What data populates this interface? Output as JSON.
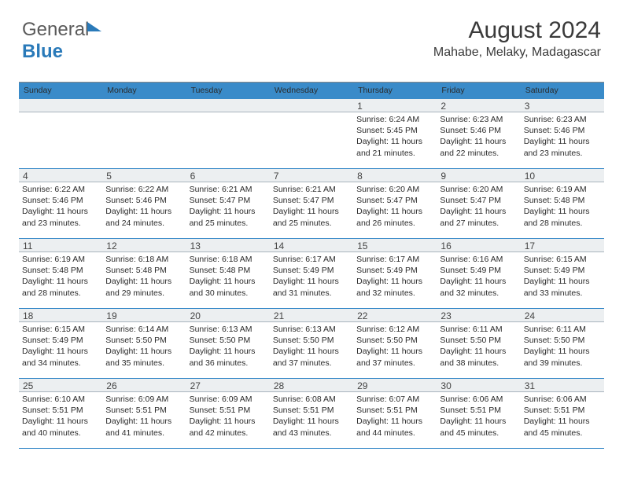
{
  "logo": {
    "part1": "General",
    "part2": "Blue"
  },
  "header": {
    "month": "August 2024",
    "location": "Mahabe, Melaky, Madagascar"
  },
  "calendar": {
    "weekdays": [
      "Sunday",
      "Monday",
      "Tuesday",
      "Wednesday",
      "Thursday",
      "Friday",
      "Saturday"
    ],
    "header_bg": "#3a8bc9",
    "header_fg": "#ffffff",
    "daynum_bg": "#eceff1",
    "row_border": "#3a8bc9",
    "text_color": "#2a2a2a",
    "weeks": [
      {
        "nums": [
          "",
          "",
          "",
          "",
          "1",
          "2",
          "3"
        ],
        "data": [
          {
            "sr": "",
            "ss": "",
            "d1": "",
            "d2": ""
          },
          {
            "sr": "",
            "ss": "",
            "d1": "",
            "d2": ""
          },
          {
            "sr": "",
            "ss": "",
            "d1": "",
            "d2": ""
          },
          {
            "sr": "",
            "ss": "",
            "d1": "",
            "d2": ""
          },
          {
            "sr": "Sunrise: 6:24 AM",
            "ss": "Sunset: 5:45 PM",
            "d1": "Daylight: 11 hours",
            "d2": "and 21 minutes."
          },
          {
            "sr": "Sunrise: 6:23 AM",
            "ss": "Sunset: 5:46 PM",
            "d1": "Daylight: 11 hours",
            "d2": "and 22 minutes."
          },
          {
            "sr": "Sunrise: 6:23 AM",
            "ss": "Sunset: 5:46 PM",
            "d1": "Daylight: 11 hours",
            "d2": "and 23 minutes."
          }
        ]
      },
      {
        "nums": [
          "4",
          "5",
          "6",
          "7",
          "8",
          "9",
          "10"
        ],
        "data": [
          {
            "sr": "Sunrise: 6:22 AM",
            "ss": "Sunset: 5:46 PM",
            "d1": "Daylight: 11 hours",
            "d2": "and 23 minutes."
          },
          {
            "sr": "Sunrise: 6:22 AM",
            "ss": "Sunset: 5:46 PM",
            "d1": "Daylight: 11 hours",
            "d2": "and 24 minutes."
          },
          {
            "sr": "Sunrise: 6:21 AM",
            "ss": "Sunset: 5:47 PM",
            "d1": "Daylight: 11 hours",
            "d2": "and 25 minutes."
          },
          {
            "sr": "Sunrise: 6:21 AM",
            "ss": "Sunset: 5:47 PM",
            "d1": "Daylight: 11 hours",
            "d2": "and 25 minutes."
          },
          {
            "sr": "Sunrise: 6:20 AM",
            "ss": "Sunset: 5:47 PM",
            "d1": "Daylight: 11 hours",
            "d2": "and 26 minutes."
          },
          {
            "sr": "Sunrise: 6:20 AM",
            "ss": "Sunset: 5:47 PM",
            "d1": "Daylight: 11 hours",
            "d2": "and 27 minutes."
          },
          {
            "sr": "Sunrise: 6:19 AM",
            "ss": "Sunset: 5:48 PM",
            "d1": "Daylight: 11 hours",
            "d2": "and 28 minutes."
          }
        ]
      },
      {
        "nums": [
          "11",
          "12",
          "13",
          "14",
          "15",
          "16",
          "17"
        ],
        "data": [
          {
            "sr": "Sunrise: 6:19 AM",
            "ss": "Sunset: 5:48 PM",
            "d1": "Daylight: 11 hours",
            "d2": "and 28 minutes."
          },
          {
            "sr": "Sunrise: 6:18 AM",
            "ss": "Sunset: 5:48 PM",
            "d1": "Daylight: 11 hours",
            "d2": "and 29 minutes."
          },
          {
            "sr": "Sunrise: 6:18 AM",
            "ss": "Sunset: 5:48 PM",
            "d1": "Daylight: 11 hours",
            "d2": "and 30 minutes."
          },
          {
            "sr": "Sunrise: 6:17 AM",
            "ss": "Sunset: 5:49 PM",
            "d1": "Daylight: 11 hours",
            "d2": "and 31 minutes."
          },
          {
            "sr": "Sunrise: 6:17 AM",
            "ss": "Sunset: 5:49 PM",
            "d1": "Daylight: 11 hours",
            "d2": "and 32 minutes."
          },
          {
            "sr": "Sunrise: 6:16 AM",
            "ss": "Sunset: 5:49 PM",
            "d1": "Daylight: 11 hours",
            "d2": "and 32 minutes."
          },
          {
            "sr": "Sunrise: 6:15 AM",
            "ss": "Sunset: 5:49 PM",
            "d1": "Daylight: 11 hours",
            "d2": "and 33 minutes."
          }
        ]
      },
      {
        "nums": [
          "18",
          "19",
          "20",
          "21",
          "22",
          "23",
          "24"
        ],
        "data": [
          {
            "sr": "Sunrise: 6:15 AM",
            "ss": "Sunset: 5:49 PM",
            "d1": "Daylight: 11 hours",
            "d2": "and 34 minutes."
          },
          {
            "sr": "Sunrise: 6:14 AM",
            "ss": "Sunset: 5:50 PM",
            "d1": "Daylight: 11 hours",
            "d2": "and 35 minutes."
          },
          {
            "sr": "Sunrise: 6:13 AM",
            "ss": "Sunset: 5:50 PM",
            "d1": "Daylight: 11 hours",
            "d2": "and 36 minutes."
          },
          {
            "sr": "Sunrise: 6:13 AM",
            "ss": "Sunset: 5:50 PM",
            "d1": "Daylight: 11 hours",
            "d2": "and 37 minutes."
          },
          {
            "sr": "Sunrise: 6:12 AM",
            "ss": "Sunset: 5:50 PM",
            "d1": "Daylight: 11 hours",
            "d2": "and 37 minutes."
          },
          {
            "sr": "Sunrise: 6:11 AM",
            "ss": "Sunset: 5:50 PM",
            "d1": "Daylight: 11 hours",
            "d2": "and 38 minutes."
          },
          {
            "sr": "Sunrise: 6:11 AM",
            "ss": "Sunset: 5:50 PM",
            "d1": "Daylight: 11 hours",
            "d2": "and 39 minutes."
          }
        ]
      },
      {
        "nums": [
          "25",
          "26",
          "27",
          "28",
          "29",
          "30",
          "31"
        ],
        "data": [
          {
            "sr": "Sunrise: 6:10 AM",
            "ss": "Sunset: 5:51 PM",
            "d1": "Daylight: 11 hours",
            "d2": "and 40 minutes."
          },
          {
            "sr": "Sunrise: 6:09 AM",
            "ss": "Sunset: 5:51 PM",
            "d1": "Daylight: 11 hours",
            "d2": "and 41 minutes."
          },
          {
            "sr": "Sunrise: 6:09 AM",
            "ss": "Sunset: 5:51 PM",
            "d1": "Daylight: 11 hours",
            "d2": "and 42 minutes."
          },
          {
            "sr": "Sunrise: 6:08 AM",
            "ss": "Sunset: 5:51 PM",
            "d1": "Daylight: 11 hours",
            "d2": "and 43 minutes."
          },
          {
            "sr": "Sunrise: 6:07 AM",
            "ss": "Sunset: 5:51 PM",
            "d1": "Daylight: 11 hours",
            "d2": "and 44 minutes."
          },
          {
            "sr": "Sunrise: 6:06 AM",
            "ss": "Sunset: 5:51 PM",
            "d1": "Daylight: 11 hours",
            "d2": "and 45 minutes."
          },
          {
            "sr": "Sunrise: 6:06 AM",
            "ss": "Sunset: 5:51 PM",
            "d1": "Daylight: 11 hours",
            "d2": "and 45 minutes."
          }
        ]
      }
    ]
  }
}
